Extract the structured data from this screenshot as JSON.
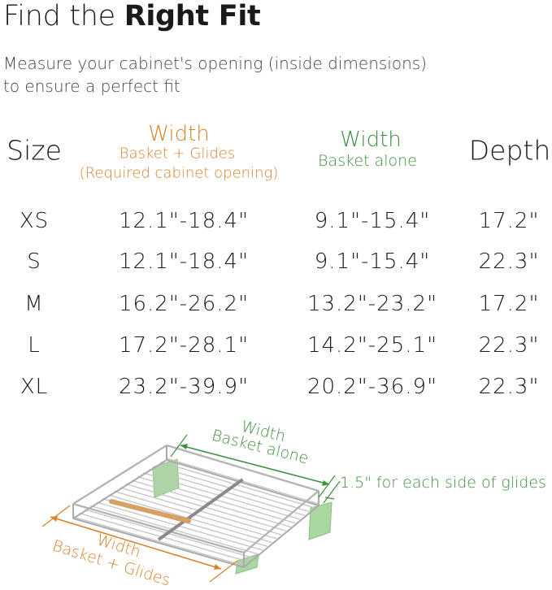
{
  "title": {
    "prefix": "Find the ",
    "bold": "Right Fit"
  },
  "subtitle": [
    "Measure your cabinet's opening (inside dimensions)",
    "to ensure a perfect fit"
  ],
  "table": {
    "headers": {
      "size": "Size",
      "width_total": {
        "title": "Width",
        "line1": "Basket + Glides",
        "line2": "(Required cabinet opening)"
      },
      "width_basket": {
        "title": "Width",
        "line1": "Basket alone"
      },
      "depth": "Depth"
    },
    "rows": [
      {
        "size": "XS",
        "width_total": "12.1\"-18.4\"",
        "width_basket": "9.1\"-15.4\"",
        "depth": "17.2\""
      },
      {
        "size": "S",
        "width_total": "12.1\"-18.4\"",
        "width_basket": "9.1\"-15.4\"",
        "depth": "22.3\""
      },
      {
        "size": "M",
        "width_total": "16.2\"-26.2\"",
        "width_basket": "13.2\"-23.2\"",
        "depth": "17.2\""
      },
      {
        "size": "L",
        "width_total": "17.2\"-28.1\"",
        "width_basket": "14.2\"-25.1\"",
        "depth": "22.3\""
      },
      {
        "size": "XL",
        "width_total": "23.2\"-39.9\"",
        "width_basket": "20.2\"-36.9\"",
        "depth": "22.3\""
      }
    ]
  },
  "diagram": {
    "basket_label": {
      "title": "Width",
      "line1": "Basket alone"
    },
    "total_label": {
      "title": "Width",
      "line1": "Basket + Glides"
    },
    "glide_note": "1.5\" for each side of glides"
  },
  "colors": {
    "orange": "#d9822b",
    "green": "#3f8f3f",
    "glide": "#a8d8a0",
    "handle": "#d9a066"
  }
}
